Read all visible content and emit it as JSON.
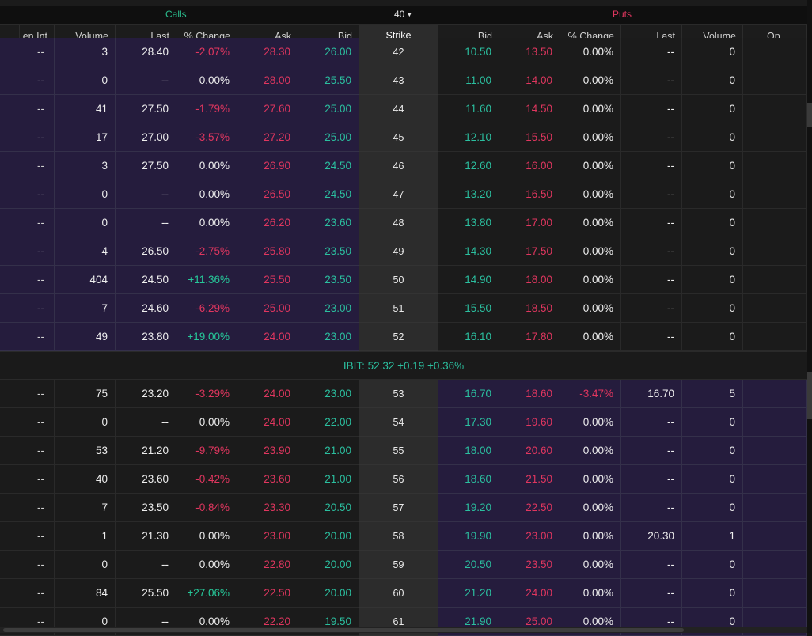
{
  "header": {
    "calls_label": "Calls",
    "strike_count": "40",
    "puts_label": "Puts"
  },
  "columns": {
    "open_int": "en Int",
    "calls": [
      "Volume",
      "Last",
      "% Change",
      "Ask",
      "Bid"
    ],
    "strike": "Strike",
    "puts": [
      "Bid",
      "Ask",
      "% Change",
      "Last",
      "Volume"
    ],
    "open_int_puts": "Op"
  },
  "ticker": {
    "text": "IBIT:  52.32 +0.19 +0.36%"
  },
  "rows_top": [
    {
      "oi": "--",
      "vol": "3",
      "last": "28.40",
      "chg": "-2.07%",
      "ask": "28.30",
      "bid": "26.00",
      "strike": "42",
      "pbid": "10.50",
      "pask": "13.50",
      "pchg": "0.00%",
      "plast": "--",
      "pvol": "0"
    },
    {
      "oi": "--",
      "vol": "0",
      "last": "--",
      "chg": "0.00%",
      "ask": "28.00",
      "bid": "25.50",
      "strike": "43",
      "pbid": "11.00",
      "pask": "14.00",
      "pchg": "0.00%",
      "plast": "--",
      "pvol": "0"
    },
    {
      "oi": "--",
      "vol": "41",
      "last": "27.50",
      "chg": "-1.79%",
      "ask": "27.60",
      "bid": "25.00",
      "strike": "44",
      "pbid": "11.60",
      "pask": "14.50",
      "pchg": "0.00%",
      "plast": "--",
      "pvol": "0"
    },
    {
      "oi": "--",
      "vol": "17",
      "last": "27.00",
      "chg": "-3.57%",
      "ask": "27.20",
      "bid": "25.00",
      "strike": "45",
      "pbid": "12.10",
      "pask": "15.50",
      "pchg": "0.00%",
      "plast": "--",
      "pvol": "0"
    },
    {
      "oi": "--",
      "vol": "3",
      "last": "27.50",
      "chg": "0.00%",
      "ask": "26.90",
      "bid": "24.50",
      "strike": "46",
      "pbid": "12.60",
      "pask": "16.00",
      "pchg": "0.00%",
      "plast": "--",
      "pvol": "0"
    },
    {
      "oi": "--",
      "vol": "0",
      "last": "--",
      "chg": "0.00%",
      "ask": "26.50",
      "bid": "24.50",
      "strike": "47",
      "pbid": "13.20",
      "pask": "16.50",
      "pchg": "0.00%",
      "plast": "--",
      "pvol": "0"
    },
    {
      "oi": "--",
      "vol": "0",
      "last": "--",
      "chg": "0.00%",
      "ask": "26.20",
      "bid": "23.60",
      "strike": "48",
      "pbid": "13.80",
      "pask": "17.00",
      "pchg": "0.00%",
      "plast": "--",
      "pvol": "0"
    },
    {
      "oi": "--",
      "vol": "4",
      "last": "26.50",
      "chg": "-2.75%",
      "ask": "25.80",
      "bid": "23.50",
      "strike": "49",
      "pbid": "14.30",
      "pask": "17.50",
      "pchg": "0.00%",
      "plast": "--",
      "pvol": "0"
    },
    {
      "oi": "--",
      "vol": "404",
      "last": "24.50",
      "chg": "+11.36%",
      "ask": "25.50",
      "bid": "23.50",
      "strike": "50",
      "pbid": "14.90",
      "pask": "18.00",
      "pchg": "0.00%",
      "plast": "--",
      "pvol": "0"
    },
    {
      "oi": "--",
      "vol": "7",
      "last": "24.60",
      "chg": "-6.29%",
      "ask": "25.00",
      "bid": "23.00",
      "strike": "51",
      "pbid": "15.50",
      "pask": "18.50",
      "pchg": "0.00%",
      "plast": "--",
      "pvol": "0"
    },
    {
      "oi": "--",
      "vol": "49",
      "last": "23.80",
      "chg": "+19.00%",
      "ask": "24.00",
      "bid": "23.00",
      "strike": "52",
      "pbid": "16.10",
      "pask": "17.80",
      "pchg": "0.00%",
      "plast": "--",
      "pvol": "0"
    }
  ],
  "rows_bottom": [
    {
      "oi": "--",
      "vol": "75",
      "last": "23.20",
      "chg": "-3.29%",
      "ask": "24.00",
      "bid": "23.00",
      "strike": "53",
      "pbid": "16.70",
      "pask": "18.60",
      "pchg": "-3.47%",
      "plast": "16.70",
      "pvol": "5"
    },
    {
      "oi": "--",
      "vol": "0",
      "last": "--",
      "chg": "0.00%",
      "ask": "24.00",
      "bid": "22.00",
      "strike": "54",
      "pbid": "17.30",
      "pask": "19.60",
      "pchg": "0.00%",
      "plast": "--",
      "pvol": "0"
    },
    {
      "oi": "--",
      "vol": "53",
      "last": "21.20",
      "chg": "-9.79%",
      "ask": "23.90",
      "bid": "21.00",
      "strike": "55",
      "pbid": "18.00",
      "pask": "20.60",
      "pchg": "0.00%",
      "plast": "--",
      "pvol": "0"
    },
    {
      "oi": "--",
      "vol": "40",
      "last": "23.60",
      "chg": "-0.42%",
      "ask": "23.60",
      "bid": "21.00",
      "strike": "56",
      "pbid": "18.60",
      "pask": "21.50",
      "pchg": "0.00%",
      "plast": "--",
      "pvol": "0"
    },
    {
      "oi": "--",
      "vol": "7",
      "last": "23.50",
      "chg": "-0.84%",
      "ask": "23.30",
      "bid": "20.50",
      "strike": "57",
      "pbid": "19.20",
      "pask": "22.50",
      "pchg": "0.00%",
      "plast": "--",
      "pvol": "0"
    },
    {
      "oi": "--",
      "vol": "1",
      "last": "21.30",
      "chg": "0.00%",
      "ask": "23.00",
      "bid": "20.00",
      "strike": "58",
      "pbid": "19.90",
      "pask": "23.00",
      "pchg": "0.00%",
      "plast": "20.30",
      "pvol": "1"
    },
    {
      "oi": "--",
      "vol": "0",
      "last": "--",
      "chg": "0.00%",
      "ask": "22.80",
      "bid": "20.00",
      "strike": "59",
      "pbid": "20.50",
      "pask": "23.50",
      "pchg": "0.00%",
      "plast": "--",
      "pvol": "0"
    },
    {
      "oi": "--",
      "vol": "84",
      "last": "25.50",
      "chg": "+27.06%",
      "ask": "22.50",
      "bid": "20.00",
      "strike": "60",
      "pbid": "21.20",
      "pask": "24.00",
      "pchg": "0.00%",
      "plast": "--",
      "pvol": "0"
    },
    {
      "oi": "--",
      "vol": "0",
      "last": "--",
      "chg": "0.00%",
      "ask": "22.20",
      "bid": "19.50",
      "strike": "61",
      "pbid": "21.90",
      "pask": "25.00",
      "pchg": "0.00%",
      "plast": "--",
      "pvol": "0"
    }
  ]
}
